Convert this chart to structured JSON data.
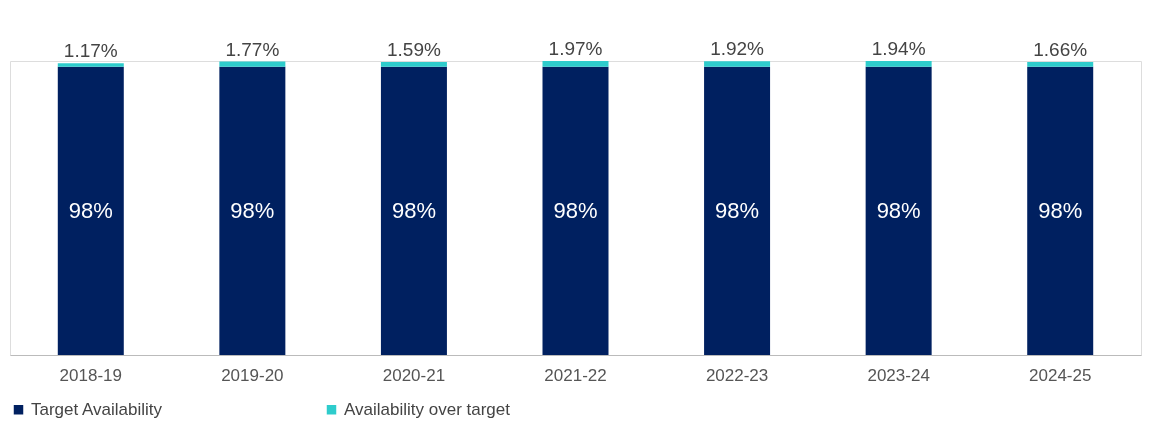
{
  "chart_data": {
    "type": "bar",
    "stacked": true,
    "legend": "bottom",
    "grid": false,
    "categories": [
      "2018-19",
      "2019-20",
      "2020-21",
      "2021-22",
      "2022-23",
      "2023-24",
      "2024-25"
    ],
    "series": [
      {
        "name": "Target Availability",
        "color": "#002060",
        "values": [
          98,
          98,
          98,
          98,
          98,
          98,
          98
        ],
        "value_labels": [
          "98%",
          "98%",
          "98%",
          "98%",
          "98%",
          "98%",
          "98%"
        ]
      },
      {
        "name": "Availability over target",
        "color": "#2ecccc",
        "values": [
          1.17,
          1.77,
          1.59,
          1.97,
          1.92,
          1.94,
          1.66
        ],
        "value_labels": [
          "1.17%",
          "1.77%",
          "1.59%",
          "1.97%",
          "1.92%",
          "1.94%",
          "1.66%"
        ]
      }
    ]
  }
}
